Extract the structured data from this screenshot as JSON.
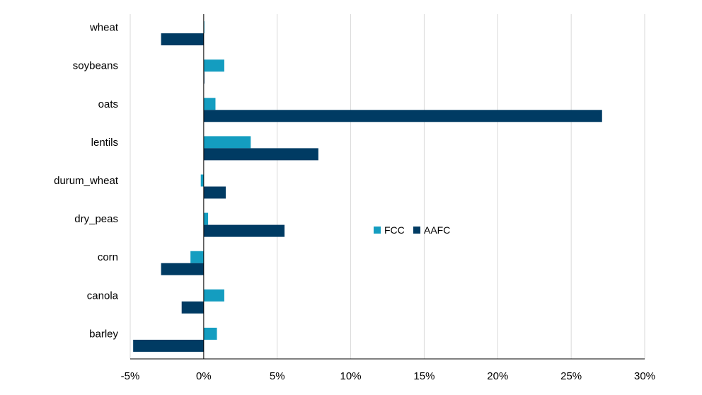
{
  "chart_data": {
    "type": "bar",
    "orientation": "horizontal",
    "categories": [
      "wheat",
      "soybeans",
      "oats",
      "lentils",
      "durum_wheat",
      "dry_peas",
      "corn",
      "canola",
      "barley"
    ],
    "series": [
      {
        "name": "FCC",
        "color": "#149dc0",
        "values": [
          0.0,
          1.4,
          0.8,
          3.2,
          -0.2,
          0.3,
          -0.9,
          1.4,
          0.9
        ]
      },
      {
        "name": "AAFC",
        "color": "#003b63",
        "values": [
          -2.9,
          0.0,
          27.1,
          7.8,
          1.5,
          5.5,
          -2.9,
          -1.5,
          -4.8
        ]
      }
    ],
    "xlim": [
      -5,
      30
    ],
    "xticks": [
      -5,
      0,
      5,
      10,
      15,
      20,
      25,
      30
    ],
    "xtick_labels": [
      "-5%",
      "0%",
      "5%",
      "10%",
      "15%",
      "20%",
      "25%",
      "30%"
    ],
    "grid": "vertical",
    "legend_position": "center",
    "title": "",
    "xlabel": "",
    "ylabel": ""
  }
}
